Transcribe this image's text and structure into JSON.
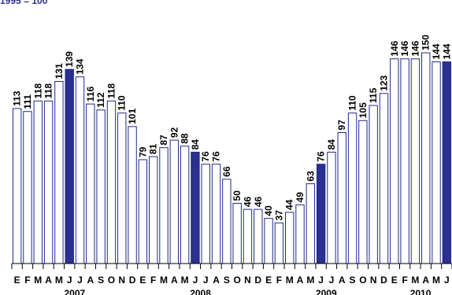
{
  "header": {
    "title_fragment": "1995 = 100"
  },
  "colors": {
    "outline": "#1f2a8a",
    "highlight": "#2b2f8f",
    "fill": "#ffffff",
    "text": "#000000"
  },
  "chart_data": {
    "type": "bar",
    "title": "1995 = 100",
    "categories": [
      "E",
      "F",
      "M",
      "A",
      "M",
      "J",
      "J",
      "A",
      "S",
      "O",
      "N",
      "D",
      "E",
      "F",
      "M",
      "A",
      "M",
      "J",
      "J",
      "A",
      "S",
      "O",
      "N",
      "D",
      "E",
      "F",
      "M",
      "A",
      "M",
      "J",
      "J",
      "A",
      "S",
      "O",
      "N",
      "D",
      "E",
      "F",
      "M",
      "A",
      "M",
      "J"
    ],
    "values": [
      113,
      111,
      118,
      118,
      131,
      139,
      134,
      116,
      112,
      118,
      110,
      101,
      79,
      81,
      87,
      92,
      88,
      84,
      76,
      76,
      66,
      50,
      46,
      46,
      40,
      37,
      44,
      49,
      63,
      76,
      84,
      97,
      110,
      105,
      115,
      123,
      146,
      146,
      146,
      150,
      144,
      144
    ],
    "highlighted_indices": [
      5,
      17,
      29,
      41
    ],
    "years": [
      {
        "label": "2007",
        "start": 0,
        "end": 11
      },
      {
        "label": "2008",
        "start": 12,
        "end": 23
      },
      {
        "label": "2009",
        "start": 24,
        "end": 35
      },
      {
        "label": "2010",
        "start": 36,
        "end": 41
      }
    ],
    "ylim": [
      20,
      160
    ],
    "grid": false,
    "xlabel": "",
    "ylabel": ""
  }
}
